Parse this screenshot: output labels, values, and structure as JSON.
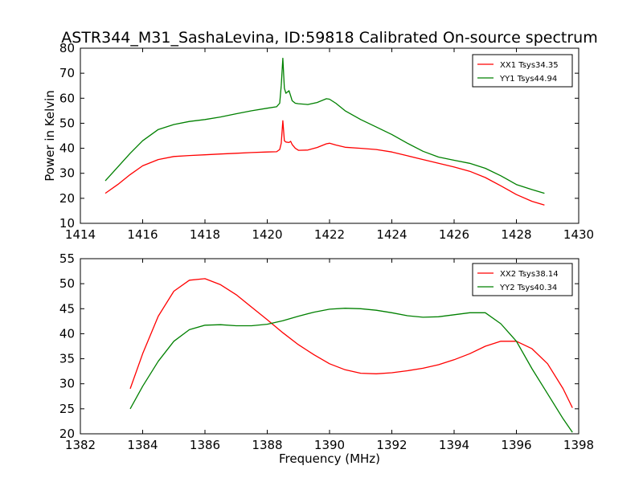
{
  "chart_data": [
    {
      "type": "line",
      "title": "ASTR344_M31_SashaLevina, ID:59818 Calibrated On-source spectrum",
      "xlabel": "",
      "ylabel": "Power in Kelvin",
      "xlim": [
        1414,
        1430
      ],
      "ylim": [
        10,
        80
      ],
      "xticks": [
        1414,
        1416,
        1418,
        1420,
        1422,
        1424,
        1426,
        1428,
        1430
      ],
      "yticks": [
        10,
        20,
        30,
        40,
        50,
        60,
        70,
        80
      ],
      "grid": false,
      "legend": "top-right",
      "series": [
        {
          "name": "XX1 Tsys34.35",
          "color": "#ff0000",
          "x": [
            1414.8,
            1415.2,
            1415.6,
            1416.0,
            1416.5,
            1417.0,
            1417.5,
            1418.0,
            1418.5,
            1419.0,
            1419.5,
            1420.0,
            1420.3,
            1420.4,
            1420.45,
            1420.5,
            1420.55,
            1420.6,
            1420.7,
            1420.75,
            1420.8,
            1420.9,
            1421.0,
            1421.3,
            1421.6,
            1421.9,
            1422.0,
            1422.2,
            1422.5,
            1423.0,
            1423.5,
            1424.0,
            1424.5,
            1425.0,
            1425.5,
            1426.0,
            1426.5,
            1427.0,
            1427.5,
            1428.0,
            1428.5,
            1428.9
          ],
          "y": [
            22,
            25.5,
            29.5,
            33,
            35.5,
            36.7,
            37.1,
            37.4,
            37.7,
            38.0,
            38.3,
            38.5,
            38.6,
            39.5,
            42,
            51,
            43,
            42.5,
            42.3,
            42.8,
            41.5,
            40.0,
            39.2,
            39.3,
            40.3,
            41.8,
            42.0,
            41.3,
            40.4,
            40.0,
            39.5,
            38.5,
            37.0,
            35.5,
            34.0,
            32.5,
            30.8,
            28.3,
            25.0,
            21.5,
            18.8,
            17.3
          ]
        },
        {
          "name": "YY1 Tsys44.94",
          "color": "#008000",
          "x": [
            1414.8,
            1415.2,
            1415.6,
            1416.0,
            1416.5,
            1417.0,
            1417.5,
            1418.0,
            1418.5,
            1419.0,
            1419.5,
            1420.0,
            1420.3,
            1420.4,
            1420.45,
            1420.5,
            1420.55,
            1420.6,
            1420.7,
            1420.75,
            1420.8,
            1420.9,
            1421.0,
            1421.3,
            1421.6,
            1421.9,
            1422.0,
            1422.2,
            1422.5,
            1423.0,
            1423.5,
            1424.0,
            1424.5,
            1425.0,
            1425.5,
            1426.0,
            1426.5,
            1427.0,
            1427.5,
            1428.0,
            1428.5,
            1428.9
          ],
          "y": [
            27,
            32.5,
            38,
            43,
            47.5,
            49.5,
            50.7,
            51.5,
            52.5,
            53.8,
            55.0,
            56.0,
            56.6,
            58,
            65,
            76,
            64,
            62,
            63,
            61,
            59,
            58,
            57.8,
            57.5,
            58.3,
            59.8,
            59.6,
            58.0,
            55.0,
            51.5,
            48.5,
            45.5,
            42.0,
            38.8,
            36.5,
            35.2,
            34.0,
            32.0,
            29.0,
            25.5,
            23.5,
            22.0
          ]
        }
      ]
    },
    {
      "type": "line",
      "title": "",
      "xlabel": "Frequency (MHz)",
      "ylabel": "",
      "xlim": [
        1382,
        1398
      ],
      "ylim": [
        20,
        55
      ],
      "xticks": [
        1382,
        1384,
        1386,
        1388,
        1390,
        1392,
        1394,
        1396,
        1398
      ],
      "yticks": [
        20,
        25,
        30,
        35,
        40,
        45,
        50,
        55
      ],
      "grid": false,
      "legend": "top-right",
      "series": [
        {
          "name": "XX2 Tsys38.14",
          "color": "#ff0000",
          "x": [
            1383.6,
            1384.0,
            1384.5,
            1385.0,
            1385.5,
            1386.0,
            1386.5,
            1387.0,
            1387.5,
            1388.0,
            1388.5,
            1389.0,
            1389.5,
            1390.0,
            1390.5,
            1391.0,
            1391.5,
            1392.0,
            1392.5,
            1393.0,
            1393.5,
            1394.0,
            1394.5,
            1395.0,
            1395.5,
            1396.0,
            1396.5,
            1397.0,
            1397.5,
            1397.8
          ],
          "y": [
            29,
            36,
            43.5,
            48.5,
            50.7,
            51.0,
            49.8,
            47.8,
            45.3,
            42.8,
            40.2,
            37.8,
            35.8,
            34.0,
            32.8,
            32.1,
            32.0,
            32.2,
            32.6,
            33.1,
            33.8,
            34.8,
            36.0,
            37.5,
            38.5,
            38.5,
            37.0,
            34.0,
            29.0,
            25.2
          ]
        },
        {
          "name": "YY2 Tsys40.34",
          "color": "#008000",
          "x": [
            1383.6,
            1384.0,
            1384.5,
            1385.0,
            1385.5,
            1386.0,
            1386.5,
            1387.0,
            1387.5,
            1388.0,
            1388.5,
            1389.0,
            1389.5,
            1390.0,
            1390.5,
            1391.0,
            1391.5,
            1392.0,
            1392.5,
            1393.0,
            1393.5,
            1394.0,
            1394.5,
            1395.0,
            1395.5,
            1396.0,
            1396.5,
            1397.0,
            1397.5,
            1397.8
          ],
          "y": [
            25,
            29.5,
            34.5,
            38.5,
            40.8,
            41.7,
            41.8,
            41.6,
            41.6,
            41.9,
            42.6,
            43.5,
            44.3,
            44.9,
            45.1,
            45.0,
            44.7,
            44.2,
            43.6,
            43.3,
            43.4,
            43.8,
            44.2,
            44.2,
            42.0,
            38.5,
            33.0,
            28.0,
            23.0,
            20.3
          ]
        }
      ]
    }
  ]
}
